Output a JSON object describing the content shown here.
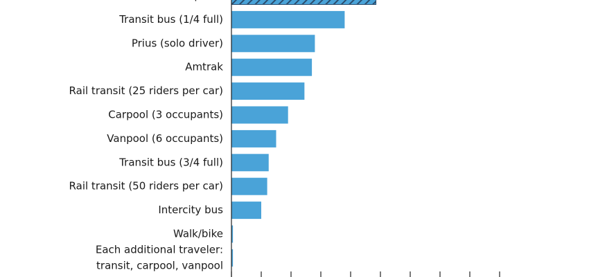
{
  "chart_data": {
    "type": "bar",
    "orientation": "horizontal",
    "categories": [
      "Airplane",
      "Transit bus (1/4 full)",
      "Prius (solo driver)",
      "Amtrak",
      "Rail transit (25 riders per car)",
      "Carpool (3 occupants)",
      "Vanpool (6 occupants)",
      "Transit bus (3/4 full)",
      "Rail transit (50 riders per car)",
      "Intercity bus",
      "Walk/bike",
      "Each additional traveler:\ntransit, carpool, vanpool"
    ],
    "values": [
      4.85,
      3.8,
      2.8,
      2.7,
      2.45,
      1.9,
      1.5,
      1.25,
      1.2,
      1.0,
      0.05,
      0.05
    ],
    "bar_styles": [
      "hatched",
      "solid",
      "solid",
      "solid",
      "solid",
      "solid",
      "solid",
      "solid",
      "solid",
      "solid",
      "solid",
      "solid"
    ],
    "xlim": [
      0,
      9
    ],
    "x_tick_count": 9,
    "title": "",
    "xlabel": "",
    "ylabel": "",
    "grid": false,
    "legend": "none",
    "colors": {
      "bar": "#4aa3d8",
      "hatch": "#2a4d6e",
      "axis": "#222222",
      "text": "#1a1a1a"
    }
  }
}
